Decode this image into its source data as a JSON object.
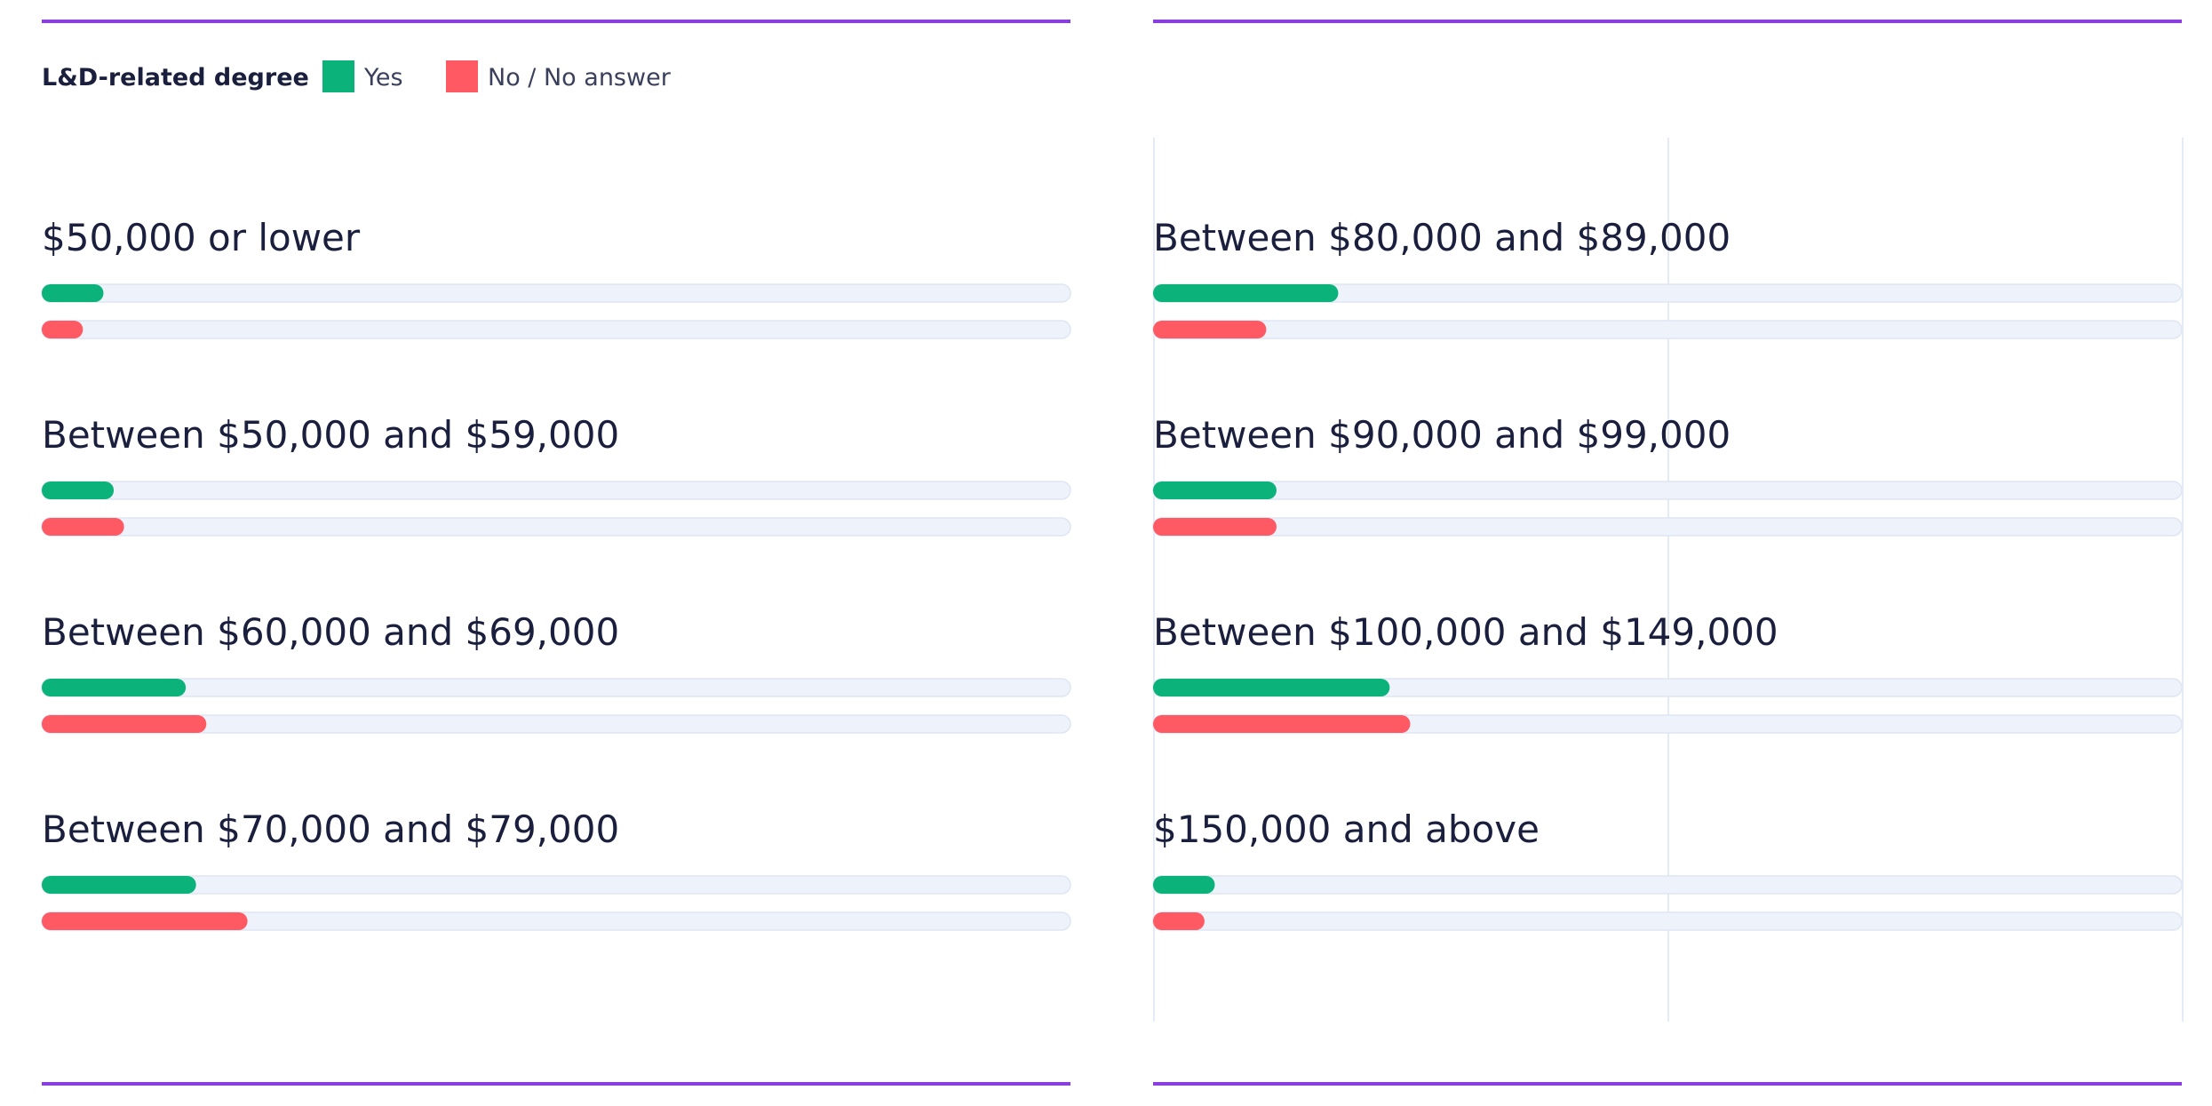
{
  "chart_data": {
    "type": "bar",
    "orientation": "horizontal",
    "legend": {
      "title": "L&D-related degree",
      "entries": [
        "Yes",
        "No / No answer"
      ]
    },
    "colors": {
      "Yes": "#0bb37a",
      "No / No answer": "#ff5a64",
      "rule": "#8a3ee0"
    },
    "xlim": [
      0,
      100
    ],
    "categories": [
      "$50,000 or lower",
      "Between $50,000 and $59,000",
      "Between $60,000 and $69,000",
      "Between $70,000 and $79,000",
      "Between $80,000 and $89,000",
      "Between $90,000 and $99,000",
      "Between $100,000 and $149,000",
      "$150,000 and above"
    ],
    "series": [
      {
        "name": "Yes",
        "values": [
          6,
          7,
          14,
          15,
          18,
          12,
          23,
          6
        ]
      },
      {
        "name": "No / No answer",
        "values": [
          4,
          8,
          16,
          20,
          11,
          12,
          25,
          5
        ]
      }
    ]
  }
}
